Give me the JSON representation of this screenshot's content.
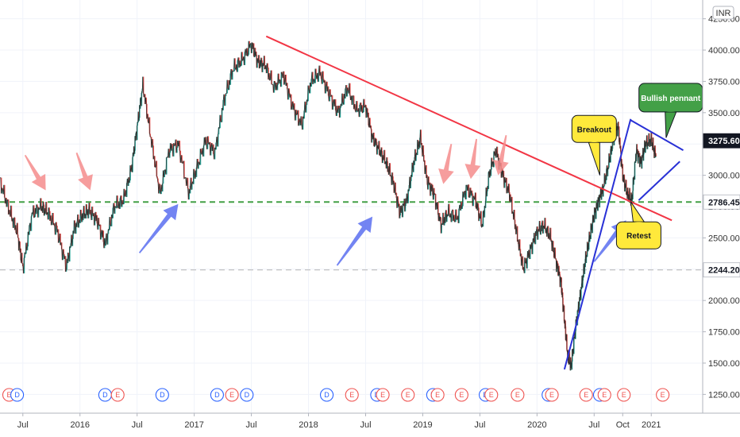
{
  "chart_data": {
    "type": "line",
    "currency": "INR",
    "title": "",
    "xlabel": "",
    "ylabel": "",
    "ylim": [
      1100,
      4400
    ],
    "xlim": [
      2015.3,
      2021.45
    ],
    "y_ticks": [
      "1250.00",
      "1500.00",
      "1750.00",
      "2000.00",
      "2250.00",
      "2500.00",
      "2750.00",
      "3000.00",
      "3250.00",
      "3500.00",
      "3750.00",
      "4000.00",
      "4250.00"
    ],
    "x_ticks": [
      {
        "label": "Jul",
        "x": 2015.5
      },
      {
        "label": "2016",
        "x": 2016.0
      },
      {
        "label": "Jul",
        "x": 2016.5
      },
      {
        "label": "2017",
        "x": 2017.0
      },
      {
        "label": "Jul",
        "x": 2017.5
      },
      {
        "label": "2018",
        "x": 2018.0
      },
      {
        "label": "Jul",
        "x": 2018.5
      },
      {
        "label": "2019",
        "x": 2019.0
      },
      {
        "label": "Jul",
        "x": 2019.5
      },
      {
        "label": "2020",
        "x": 2020.0
      },
      {
        "label": "Jul",
        "x": 2020.5
      },
      {
        "label": "Oct",
        "x": 2020.75
      },
      {
        "label": "2021",
        "x": 2021.0
      }
    ],
    "series": [
      {
        "x": [
          2015.3,
          2015.38,
          2015.45,
          2015.5,
          2015.58,
          2015.66,
          2015.72,
          2015.8,
          2015.88,
          2015.95,
          2016.02,
          2016.08,
          2016.15,
          2016.22,
          2016.3,
          2016.38,
          2016.45,
          2016.5,
          2016.55,
          2016.62,
          2016.7,
          2016.78,
          2016.86,
          2016.95,
          2017.02,
          2017.1,
          2017.18,
          2017.26,
          2017.34,
          2017.42,
          2017.5,
          2017.56,
          2017.62,
          2017.7,
          2017.78,
          2017.86,
          2017.94,
          2018.02,
          2018.1,
          2018.18,
          2018.26,
          2018.34,
          2018.42,
          2018.5,
          2018.56,
          2018.62,
          2018.68,
          2018.74,
          2018.8,
          2018.86,
          2018.92,
          2018.98,
          2019.04,
          2019.1,
          2019.16,
          2019.22,
          2019.3,
          2019.38,
          2019.46,
          2019.52,
          2019.58,
          2019.64,
          2019.7,
          2019.76,
          2019.82,
          2019.88,
          2019.94,
          2020.0,
          2020.06,
          2020.12,
          2020.17,
          2020.21,
          2020.24,
          2020.27,
          2020.3,
          2020.34,
          2020.38,
          2020.42,
          2020.46,
          2020.5,
          2020.54,
          2020.58,
          2020.63,
          2020.67,
          2020.71,
          2020.75,
          2020.79,
          2020.83,
          2020.87,
          2020.91,
          2020.95,
          2021.0,
          2021.04
        ],
        "y": [
          2950,
          2720,
          2550,
          2260,
          2690,
          2750,
          2700,
          2560,
          2270,
          2580,
          2680,
          2720,
          2640,
          2450,
          2750,
          2800,
          3050,
          3380,
          3720,
          3300,
          2850,
          3200,
          3250,
          2860,
          3050,
          3280,
          3180,
          3600,
          3850,
          3920,
          4050,
          3900,
          3880,
          3700,
          3800,
          3550,
          3400,
          3750,
          3820,
          3650,
          3500,
          3700,
          3520,
          3550,
          3300,
          3200,
          3100,
          2950,
          2700,
          2800,
          3100,
          3300,
          2950,
          2850,
          2600,
          2700,
          2650,
          2900,
          2800,
          2600,
          3000,
          3200,
          3000,
          2850,
          2550,
          2250,
          2400,
          2550,
          2600,
          2500,
          2300,
          2150,
          1850,
          1550,
          1480,
          1800,
          2050,
          2300,
          2500,
          2680,
          2800,
          2900,
          3100,
          3300,
          3400,
          3000,
          2850,
          2800,
          3200,
          3100,
          3250,
          3280,
          3150
        ]
      }
    ],
    "price_labels": [
      {
        "value": 3275.6,
        "label": "3275.60",
        "bg": "#131722",
        "fg": "#ffffff"
      },
      {
        "value": 2786.45,
        "label": "2786.45",
        "bg": "#ffffff",
        "fg": "#131722"
      },
      {
        "value": 2244.2,
        "label": "2244.20",
        "bg": "#ffffff",
        "fg": "#131722"
      }
    ],
    "horizontal_lines": [
      {
        "y": 2786.45,
        "color": "#43a047",
        "style": "dashed"
      },
      {
        "y": 2244.2,
        "color": "#bdbdbd",
        "style": "dashed"
      }
    ],
    "trendlines": [
      {
        "name": "red-downtrend-line",
        "x1": 2017.63,
        "y1": 4110,
        "x2": 2021.18,
        "y2": 2640,
        "color": "#f23645"
      },
      {
        "name": "blue-uptrend-line",
        "x1": 2020.24,
        "y1": 1450,
        "x2": 2020.82,
        "y2": 3450,
        "color": "#2931d6"
      },
      {
        "name": "pennant-upper-line",
        "x1": 2020.82,
        "y1": 3440,
        "x2": 2021.28,
        "y2": 3200,
        "color": "#2931d6"
      },
      {
        "name": "pennant-lower-line",
        "x1": 2020.89,
        "y1": 2800,
        "x2": 2021.25,
        "y2": 3110,
        "color": "#2931d6"
      }
    ],
    "arrows_red": [
      {
        "x1": 2015.52,
        "y1": 3160,
        "x2": 2015.7,
        "y2": 2880
      },
      {
        "x1": 2015.97,
        "y1": 3180,
        "x2": 2016.09,
        "y2": 2880
      },
      {
        "x1": 2019.25,
        "y1": 3250,
        "x2": 2019.18,
        "y2": 2930
      },
      {
        "x1": 2019.47,
        "y1": 3290,
        "x2": 2019.42,
        "y2": 2970
      },
      {
        "x1": 2019.73,
        "y1": 3320,
        "x2": 2019.66,
        "y2": 3000
      }
    ],
    "arrows_blue": [
      {
        "x1": 2016.52,
        "y1": 2380,
        "x2": 2016.86,
        "y2": 2770
      },
      {
        "x1": 2018.25,
        "y1": 2280,
        "x2": 2018.56,
        "y2": 2670
      },
      {
        "x1": 2020.5,
        "y1": 2310,
        "x2": 2020.78,
        "y2": 2640
      }
    ],
    "events": [
      {
        "x": 2015.38,
        "type": "E"
      },
      {
        "x": 2015.45,
        "type": "D"
      },
      {
        "x": 2016.22,
        "type": "D"
      },
      {
        "x": 2016.33,
        "type": "E"
      },
      {
        "x": 2016.72,
        "type": "D"
      },
      {
        "x": 2017.2,
        "type": "D"
      },
      {
        "x": 2017.33,
        "type": "E"
      },
      {
        "x": 2017.46,
        "type": "D"
      },
      {
        "x": 2018.16,
        "type": "D"
      },
      {
        "x": 2018.38,
        "type": "E"
      },
      {
        "x": 2018.6,
        "type": "D"
      },
      {
        "x": 2018.65,
        "type": "E"
      },
      {
        "x": 2018.87,
        "type": "E"
      },
      {
        "x": 2019.09,
        "type": "D"
      },
      {
        "x": 2019.13,
        "type": "E"
      },
      {
        "x": 2019.34,
        "type": "E"
      },
      {
        "x": 2019.55,
        "type": "D"
      },
      {
        "x": 2019.6,
        "type": "E"
      },
      {
        "x": 2019.83,
        "type": "E"
      },
      {
        "x": 2020.1,
        "type": "D"
      },
      {
        "x": 2020.13,
        "type": "E"
      },
      {
        "x": 2020.43,
        "type": "E"
      },
      {
        "x": 2020.55,
        "type": "D"
      },
      {
        "x": 2020.59,
        "type": "E"
      },
      {
        "x": 2020.76,
        "type": "E"
      },
      {
        "x": 2021.1,
        "type": "E"
      }
    ],
    "callouts": [
      {
        "name": "breakout-callout",
        "text": "Breakout",
        "fill": "#ffe93b",
        "x": 2020.5,
        "y": 3370,
        "tail_x": 2020.55,
        "tail_y": 3000
      },
      {
        "name": "retest-callout",
        "text": "Retest",
        "fill": "#ffe93b",
        "x": 2020.89,
        "y": 2520,
        "tail_x": 2020.82,
        "tail_y": 2790
      },
      {
        "name": "bullish-pennant-callout",
        "text": "Bullish pennant",
        "fill": "#43a047",
        "x": 2021.17,
        "y": 3620,
        "tail_x": 2021.13,
        "tail_y": 3300
      }
    ],
    "colors": {
      "up": "#26a69a",
      "down": "#ef5350",
      "line": "#222222",
      "grid": "#f0f3fa",
      "axis": "#787b86",
      "event_E": "#ef5350",
      "event_D": "#2962ff"
    }
  }
}
